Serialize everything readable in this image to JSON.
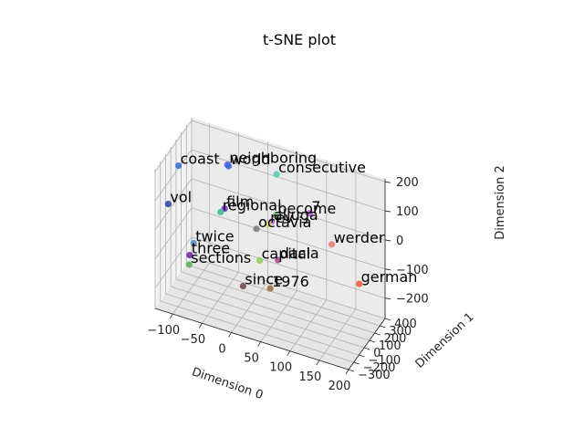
{
  "chart_data": {
    "type": "scatter",
    "title": "t-SNE plot",
    "xlabel": "Dimension 0",
    "ylabel": "Dimension 1",
    "zlabel": "Dimension 2",
    "xlim": [
      -130,
      200
    ],
    "ylim": [
      -300,
      400
    ],
    "zlim": [
      -270,
      210
    ],
    "xticks": [
      "−100",
      "−50",
      "0",
      "50",
      "100",
      "150",
      "200"
    ],
    "yticks": [
      "−300",
      "−200",
      "−100",
      "0",
      "100",
      "200",
      "300",
      "400"
    ],
    "zticks": [
      "−200",
      "−100",
      "0",
      "100",
      "200"
    ],
    "grid": true,
    "points": [
      {
        "label": "coast",
        "x": -115,
        "y": -20,
        "z": 160,
        "color": "#3b6fd6"
      },
      {
        "label": "neighboring",
        "x": -45,
        "y": 130,
        "z": 170,
        "color": "#5a63d8"
      },
      {
        "label": "world",
        "x": -42,
        "y": 120,
        "z": 170,
        "color": "#4466dd"
      },
      {
        "label": "consecutive",
        "x": 30,
        "y": 230,
        "z": 160,
        "color": "#55cbb4"
      },
      {
        "label": "vol",
        "x": -120,
        "y": -160,
        "z": 60,
        "color": "#3545b0"
      },
      {
        "label": "film",
        "x": -40,
        "y": 20,
        "z": 50,
        "color": "#7a3fd0"
      },
      {
        "label": "regional",
        "x": -45,
        "y": 0,
        "z": 40,
        "color": "#3ec0a0"
      },
      {
        "label": "become",
        "x": 35,
        "y": 160,
        "z": 40,
        "color": "#7bd07a"
      },
      {
        "label": "alluga",
        "x": 30,
        "y": 140,
        "z": 20,
        "color": "#c070d8"
      },
      {
        "label": "7",
        "x": 80,
        "y": 300,
        "z": 40,
        "color": "#c060e0"
      },
      {
        "label": "rev",
        "x": 25,
        "y": 130,
        "z": 10,
        "color": "#d8d050"
      },
      {
        "label": "octavia",
        "x": 10,
        "y": 70,
        "z": 0,
        "color": "#808080"
      },
      {
        "label": "twice",
        "x": -75,
        "y": -180,
        "z": -40,
        "color": "#6098c8"
      },
      {
        "label": "werder",
        "x": 110,
        "y": 390,
        "z": -70,
        "color": "#f07a7a"
      },
      {
        "label": "capital",
        "x": 20,
        "y": 20,
        "z": -90,
        "color": "#90d060"
      },
      {
        "label": "dacia",
        "x": 45,
        "y": 90,
        "z": -90,
        "color": "#b05090"
      },
      {
        "label": "three",
        "x": -80,
        "y": -200,
        "z": -80,
        "color": "#7030a0"
      },
      {
        "label": "sections",
        "x": -80,
        "y": -210,
        "z": -110,
        "color": "#60b060"
      },
      {
        "label": "since",
        "x": 5,
        "y": -130,
        "z": -150,
        "color": "#705050"
      },
      {
        "label": "1976",
        "x": 45,
        "y": -60,
        "z": -150,
        "color": "#a07040"
      },
      {
        "label": "german",
        "x": 170,
        "y": 240,
        "z": -130,
        "color": "#f06040"
      }
    ]
  }
}
